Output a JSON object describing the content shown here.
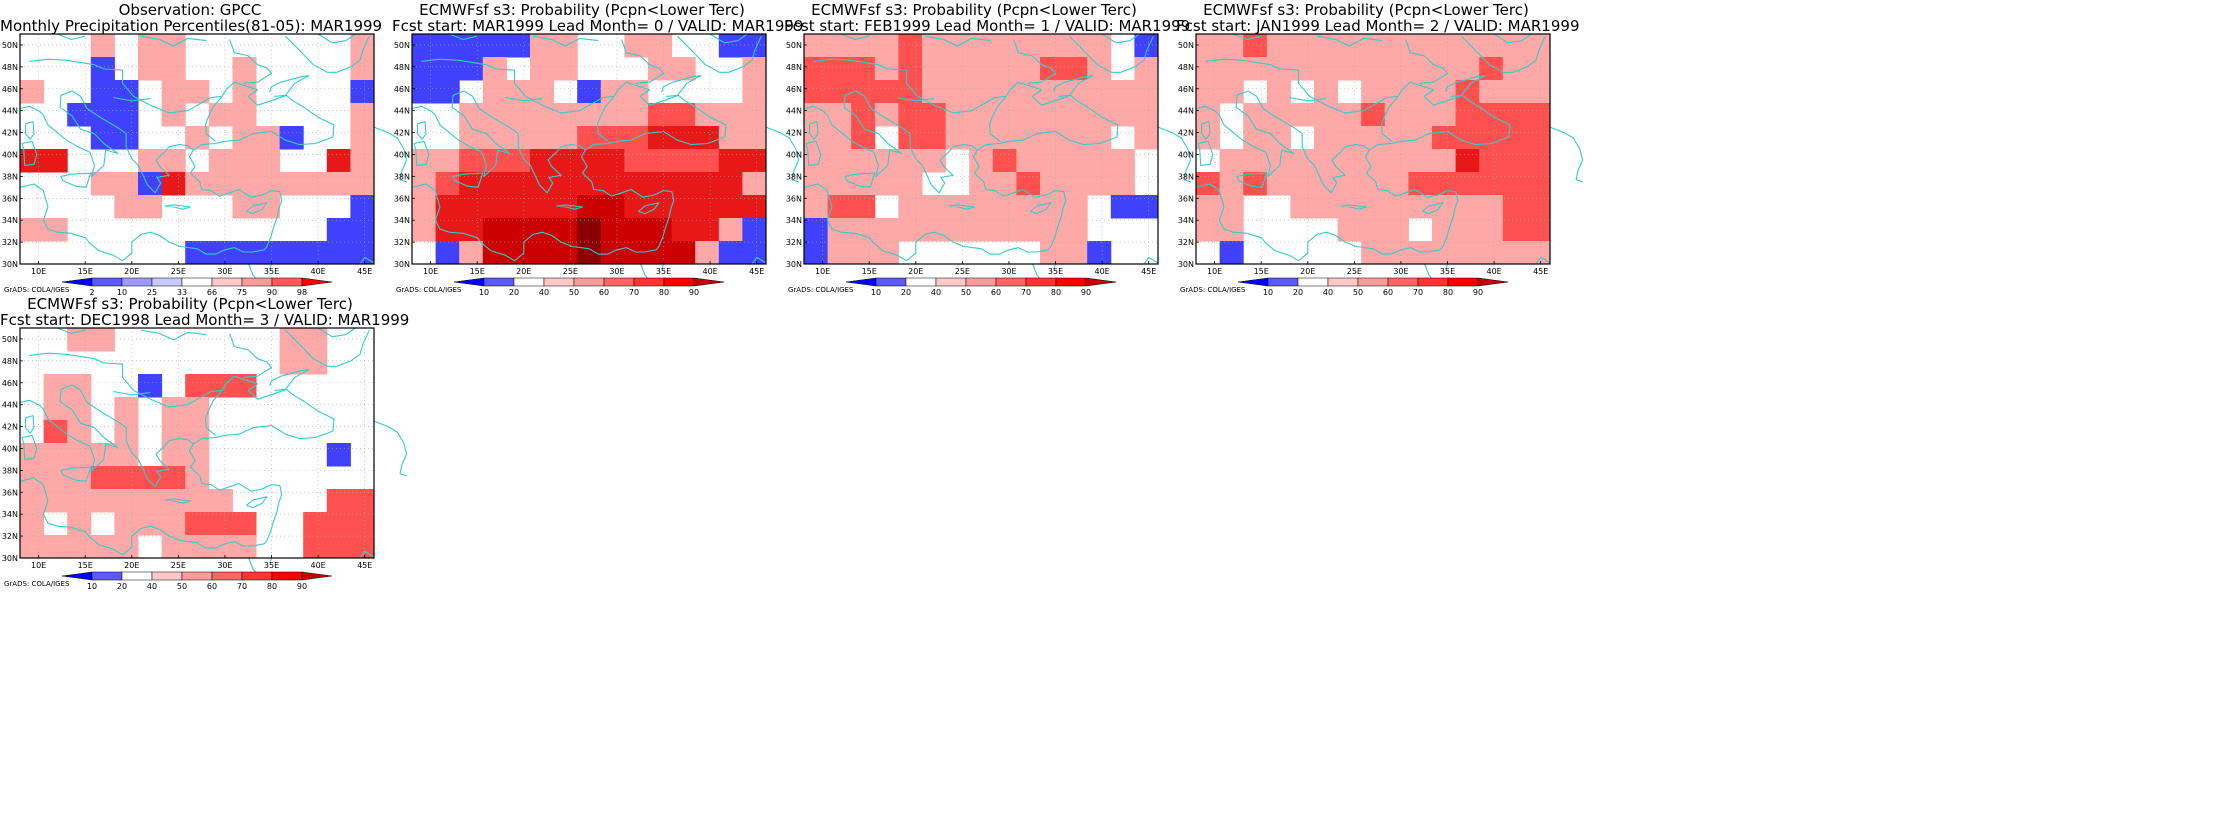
{
  "panels": [
    {
      "title_line1": "Observation: GPCC",
      "title_line2": "Monthly Precipitation Percentiles(81-05): MAR1999",
      "colorbar": {
        "labels": [
          "2",
          "10",
          "25",
          "33",
          "66",
          "75",
          "90",
          "98"
        ],
        "colors": [
          "#0000ff",
          "#5a5aff",
          "#9a9aff",
          "#c8c8ff",
          "#ffffff",
          "#ffc8c8",
          "#ff9a9a",
          "#ff5a5a",
          "#ff0000"
        ]
      },
      "grid": [
        "WWWAWAAWWWWWWWA",
        "WWWBWAAWWAWWWWA",
        "AWWBBWAAWAWWWWB",
        "WWBBBWAWAAWWWWA",
        "WWWBBWWAWAABWWA",
        "DDWWWAAWAAAWWDA",
        "WWWAABDAAAAAAAA",
        "WWWWAAWWWAAWWWB",
        "AAWWWWWWWWWWWBB",
        "WWWWWWWBBBBBBBB"
      ],
      "credit": "GrADS: COLA/IGES"
    },
    {
      "title_line1": "ECMWFsf s3: Probability (Pcpn<Lower Terc)",
      "title_line2": "Fcst start: MAR1999   Lead Month= 0 / VALID: MAR1999",
      "colorbar": {
        "labels": [
          "10",
          "20",
          "40",
          "50",
          "60",
          "70",
          "80",
          "90"
        ],
        "colors": [
          "#0000ff",
          "#5a5aff",
          "#ffffff",
          "#ffc8c8",
          "#ff9a9a",
          "#ff6464",
          "#ff3232",
          "#ff0000",
          "#c80000"
        ]
      },
      "grid": [
        "BBBBBAAWWAAWWBB",
        "BBBAWAAWWWAAWWA",
        "BBWAAAWBAAWWWWA",
        "WWAAAAAAAACCAAA",
        "WWAAAAACCCDDDAA",
        "AACCCDDDDCCCCDD",
        "ACDDDDDDDDDDDDA",
        "ADDDDDDEEDDDDDD",
        "ADDEEEEFEEEDDAB",
        "WBAEEEEFEEEEABB"
      ],
      "credit": "GrADS: COLA/IGES"
    },
    {
      "title_line1": "ECMWFsf s3: Probability (Pcpn<Lower Terc)",
      "title_line2": "Fcst start: FEB1999   Lead Month= 1 / VALID: MAR1999",
      "colorbar": {
        "labels": [
          "10",
          "20",
          "40",
          "50",
          "60",
          "70",
          "80",
          "90"
        ],
        "colors": [
          "#0000ff",
          "#5a5aff",
          "#ffffff",
          "#ffc8c8",
          "#ff9a9a",
          "#ff6464",
          "#ff3232",
          "#ff0000",
          "#c80000"
        ]
      },
      "grid": [
        "AAAACAAAAAAAAWB",
        "CCCACAAAAACCAWA",
        "CCCCCAAAAAAAAAA",
        "AACACCAAAAAAAAA",
        "AACWCCAAAAAAAWA",
        "AAAAAAWACAAAAAW",
        "AAAAAWWAACAAAAW",
        "ACCWAAAAAAAAWBB",
        "BAAAAAAAAAAAWWW",
        "BAAAWWWWWWAABWW"
      ],
      "credit": "GrADS: COLA/IGES"
    },
    {
      "title_line1": "ECMWFsf s3: Probability (Pcpn<Lower Terc)",
      "title_line2": "Fcst start: JAN1999   Lead Month= 2 / VALID: MAR1999",
      "colorbar": {
        "labels": [
          "10",
          "20",
          "40",
          "50",
          "60",
          "70",
          "80",
          "90"
        ],
        "colors": [
          "#0000ff",
          "#5a5aff",
          "#ffffff",
          "#ffc8c8",
          "#ff9a9a",
          "#ff6464",
          "#ff3232",
          "#ff0000",
          "#c80000"
        ]
      },
      "grid": [
        "AACAAAAAAAAAAAA",
        "AAAAAAAAAAAACAA",
        "AAWAWAWAAAACAAA",
        "AWAAAAACAAACCCC",
        "AWAAWAAAAACCCCC",
        "WAAAAAAAAAADCCC",
        "CACAAAAAACCCCCC",
        "AAWWAAAAAAAAACC",
        "AAWWWWAAAWAAACC",
        "WBWWWWWAAAAAAAA"
      ],
      "credit": "GrADS: COLA/IGES"
    },
    {
      "title_line1": "ECMWFsf s3: Probability (Pcpn<Lower Terc)",
      "title_line2": "Fcst start: DEC1998   Lead Month= 3 / VALID: MAR1999",
      "colorbar": {
        "labels": [
          "10",
          "20",
          "40",
          "50",
          "60",
          "70",
          "80",
          "90"
        ],
        "colors": [
          "#0000ff",
          "#5a5aff",
          "#ffffff",
          "#ffc8c8",
          "#ff9a9a",
          "#ff6464",
          "#ff3232",
          "#ff0000",
          "#c80000"
        ]
      },
      "grid": [
        "WWAAWWWWWWWAAWW",
        "WWWWWWWWWWWAAWW",
        "WAAWWBWCCCWWWWW",
        "WAAWAWAAWWWWWWW",
        "WCAWAWAAWWWWWWW",
        "AAAAAWAAWWWWWBW",
        "AAACCCCAWWWWWWW",
        "AAAAAAAAAWWWWCC",
        "AWAWAAACCCWWCCC",
        "AAAAAWAAAAWWCCC"
      ],
      "credit": "GrADS: COLA/IGES"
    }
  ],
  "axis": {
    "lat_labels": [
      "30N",
      "32N",
      "34N",
      "36N",
      "38N",
      "40N",
      "42N",
      "44N",
      "46N",
      "48N",
      "50N"
    ],
    "lon_labels": [
      "10E",
      "15E",
      "20E",
      "25E",
      "30E",
      "35E",
      "40E",
      "45E"
    ]
  },
  "legend_key": {
    "W": "#ffffff",
    "A": "#ffa8a8",
    "B": "#4040ff",
    "C": "#ff5050",
    "D": "#e81818",
    "E": "#cc0000",
    "F": "#8a0000"
  },
  "coast_color": "#33cccc",
  "panel_order_note": ""
}
